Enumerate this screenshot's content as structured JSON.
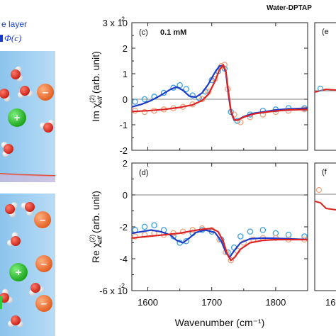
{
  "header": {
    "title": "Water-DPTAP"
  },
  "left_panel": {
    "caption_line1": "e layer",
    "caption_line2": "Φ(c)",
    "ion_symbols": [
      "–",
      "+",
      "–",
      "–",
      "+",
      "–"
    ]
  },
  "chart_data": [
    {
      "panel": "c",
      "type": "line",
      "label": "(c)",
      "annotation": "0.1 mM",
      "ylabel": "Im χ_eff^(2) (arb. unit)",
      "ylabel_parts": {
        "prefix": "Im χ",
        "sup": "(2)",
        "sub": "eff",
        "suffix": " (arb. unit)"
      },
      "xlim": [
        1575,
        1850
      ],
      "ylim": [
        -2,
        3
      ],
      "yticks": [
        3,
        2,
        1,
        0,
        -1,
        -2
      ],
      "ytick_labels": [
        "3 x 10",
        "2",
        "1",
        "0",
        "-1",
        "-2"
      ],
      "ytick_exponent": "-2",
      "zero_line": true,
      "series": [
        {
          "color": "#3aa0e0",
          "style": "markers",
          "x": [
            1580,
            1595,
            1610,
            1625,
            1640,
            1650,
            1660,
            1670,
            1680,
            1690,
            1700,
            1710,
            1720,
            1730,
            1740,
            1760,
            1780,
            1800,
            1820,
            1845
          ],
          "y": [
            -0.1,
            0.0,
            0.1,
            0.25,
            0.45,
            0.55,
            0.4,
            0.15,
            0.05,
            0.3,
            0.75,
            1.1,
            1.2,
            -0.5,
            -0.85,
            -0.6,
            -0.45,
            -0.4,
            -0.35,
            -0.35
          ]
        },
        {
          "color": "#f2a27a",
          "style": "markers",
          "x": [
            1580,
            1595,
            1610,
            1625,
            1640,
            1655,
            1670,
            1685,
            1695,
            1705,
            1715,
            1720,
            1725,
            1735,
            1745,
            1760,
            1780,
            1800,
            1820,
            1845
          ],
          "y": [
            -0.45,
            -0.5,
            -0.45,
            -0.4,
            -0.35,
            -0.3,
            -0.2,
            0.0,
            0.3,
            0.8,
            1.3,
            1.35,
            0.4,
            -0.6,
            -0.9,
            -0.7,
            -0.6,
            -0.5,
            -0.45,
            -0.4
          ]
        },
        {
          "color": "#1c3cc8",
          "style": "line",
          "x": [
            1575,
            1590,
            1605,
            1620,
            1635,
            1645,
            1655,
            1665,
            1675,
            1685,
            1695,
            1705,
            1712,
            1718,
            1722,
            1726,
            1730,
            1735,
            1740,
            1750,
            1765,
            1780,
            1800,
            1820,
            1850
          ],
          "y": [
            -0.3,
            -0.2,
            -0.05,
            0.15,
            0.38,
            0.48,
            0.35,
            0.12,
            0.08,
            0.25,
            0.6,
            1.05,
            1.3,
            1.32,
            1.05,
            0.2,
            -0.5,
            -0.82,
            -0.82,
            -0.68,
            -0.55,
            -0.5,
            -0.42,
            -0.38,
            -0.35
          ]
        },
        {
          "color": "#dd2222",
          "style": "line",
          "x": [
            1575,
            1600,
            1625,
            1650,
            1670,
            1685,
            1695,
            1705,
            1712,
            1718,
            1722,
            1726,
            1730,
            1735,
            1740,
            1750,
            1765,
            1780,
            1800,
            1820,
            1850
          ],
          "y": [
            -0.48,
            -0.45,
            -0.4,
            -0.32,
            -0.22,
            -0.05,
            0.2,
            0.7,
            1.15,
            1.35,
            1.1,
            0.3,
            -0.45,
            -0.8,
            -0.82,
            -0.7,
            -0.58,
            -0.52,
            -0.46,
            -0.42,
            -0.4
          ]
        }
      ]
    },
    {
      "panel": "d",
      "type": "line",
      "label": "(d)",
      "annotation": "",
      "ylabel": "Re χ_eff^(2) (arb. unit)",
      "ylabel_parts": {
        "prefix": "Re χ",
        "sup": "(2)",
        "sub": "eff",
        "suffix": " (arb. unit)"
      },
      "xlabel": "Wavenumber (cm⁻¹)",
      "xlim": [
        1575,
        1850
      ],
      "ylim": [
        -6,
        2
      ],
      "yticks": [
        2,
        0,
        -2,
        -4,
        -6
      ],
      "ytick_labels": [
        "2",
        "0",
        "-2",
        "-4",
        "-6 x 10"
      ],
      "ytick_exponent": "-2",
      "xticks": [
        1600,
        1700,
        1800
      ],
      "xtick_labels": [
        "1600",
        "1700",
        "1800"
      ],
      "zero_line": true,
      "series": [
        {
          "color": "#3aa0e0",
          "style": "markers",
          "x": [
            1580,
            1595,
            1610,
            1625,
            1640,
            1650,
            1660,
            1670,
            1685,
            1700,
            1715,
            1725,
            1735,
            1745,
            1760,
            1780,
            1800,
            1820,
            1845
          ],
          "y": [
            -2.2,
            -2.0,
            -1.9,
            -2.2,
            -2.6,
            -3.0,
            -2.9,
            -2.4,
            -2.2,
            -2.3,
            -2.8,
            -3.6,
            -3.3,
            -2.6,
            -2.3,
            -2.2,
            -2.4,
            -2.5,
            -2.6
          ]
        },
        {
          "color": "#f2a27a",
          "style": "markers",
          "x": [
            1580,
            1595,
            1610,
            1625,
            1640,
            1655,
            1670,
            1685,
            1700,
            1712,
            1722,
            1730,
            1740,
            1750,
            1765,
            1780,
            1800,
            1820,
            1845
          ],
          "y": [
            -2.6,
            -2.5,
            -2.4,
            -2.5,
            -2.4,
            -2.3,
            -2.2,
            -2.1,
            -2.2,
            -2.8,
            -3.6,
            -4.1,
            -3.5,
            -3.0,
            -2.8,
            -2.7,
            -2.7,
            -2.8,
            -2.8
          ]
        },
        {
          "color": "#1c3cc8",
          "style": "line",
          "x": [
            1575,
            1590,
            1605,
            1620,
            1635,
            1645,
            1655,
            1665,
            1675,
            1690,
            1705,
            1715,
            1722,
            1728,
            1735,
            1745,
            1760,
            1780,
            1800,
            1820,
            1850
          ],
          "y": [
            -2.4,
            -2.3,
            -2.2,
            -2.3,
            -2.5,
            -2.85,
            -3.0,
            -2.7,
            -2.35,
            -2.2,
            -2.35,
            -2.9,
            -3.6,
            -3.9,
            -3.5,
            -3.0,
            -2.75,
            -2.7,
            -2.72,
            -2.75,
            -2.8
          ]
        },
        {
          "color": "#dd2222",
          "style": "line",
          "x": [
            1575,
            1600,
            1625,
            1650,
            1670,
            1685,
            1700,
            1710,
            1718,
            1724,
            1730,
            1736,
            1745,
            1760,
            1780,
            1800,
            1820,
            1850
          ],
          "y": [
            -2.7,
            -2.6,
            -2.5,
            -2.4,
            -2.25,
            -2.15,
            -2.1,
            -2.3,
            -2.9,
            -3.7,
            -4.1,
            -3.9,
            -3.4,
            -3.0,
            -2.85,
            -2.8,
            -2.8,
            -2.8
          ]
        }
      ]
    }
  ],
  "right_panels": {
    "top_label": "(e",
    "bottom_label": "(f",
    "bottom_tick": "16"
  }
}
